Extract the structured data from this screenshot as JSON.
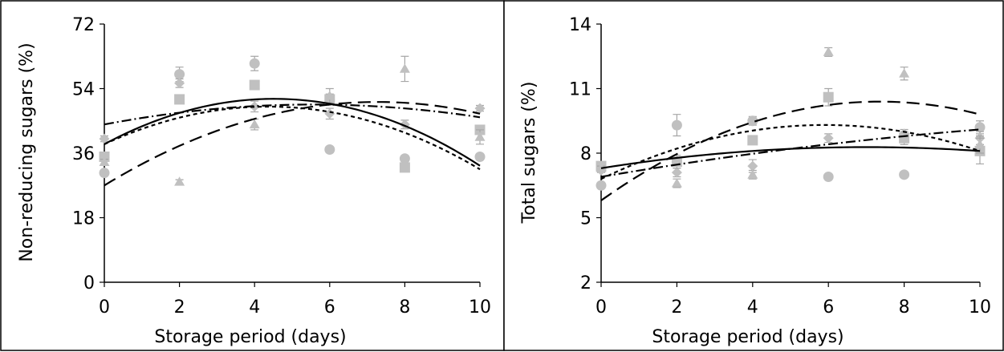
{
  "colors": {
    "marker": "#c0c0c0",
    "fit_line": "#000000",
    "frame": "#000000"
  },
  "chart_data": [
    {
      "type": "scatter",
      "xlabel": "Storage period (days)",
      "ylabel": "Non-reducing sugars (%)",
      "x_ticks": [
        0,
        2,
        4,
        6,
        8,
        10
      ],
      "y_ticks": [
        0,
        18,
        36,
        54,
        72
      ],
      "xlim": [
        0,
        10
      ],
      "ylim": [
        0,
        72
      ],
      "grid": false,
      "series": [
        {
          "marker": "circle",
          "line_style": "short-dash",
          "points": [
            [
              0,
              30.5
            ],
            [
              2,
              58.0
            ],
            [
              4,
              61.0
            ],
            [
              6,
              37.0
            ],
            [
              8,
              34.5
            ],
            [
              10,
              35.0
            ]
          ],
          "errors": [
            0.8,
            2.0,
            2.0,
            0.8,
            0.8,
            0.8
          ],
          "fit": [
            38.5,
            4.8,
            -0.55
          ]
        },
        {
          "marker": "diamond",
          "line_style": "dash-dot",
          "points": [
            [
              0,
              40.0
            ],
            [
              2,
              55.5
            ],
            [
              4,
              49.0
            ],
            [
              6,
              47.0
            ],
            [
              8,
              44.0
            ],
            [
              10,
              48.5
            ]
          ],
          "errors": [
            0.8,
            1.2,
            1.5,
            1.5,
            1.2,
            0.8
          ],
          "fit": [
            44.0,
            2.0,
            -0.18
          ]
        },
        {
          "marker": "square",
          "line_style": "solid",
          "points": [
            [
              0,
              35.0
            ],
            [
              2,
              51.0
            ],
            [
              4,
              55.0
            ],
            [
              6,
              51.0
            ],
            [
              8,
              32.0
            ],
            [
              10,
              42.5
            ]
          ],
          "errors": [
            0.8,
            1.2,
            1.0,
            1.5,
            1.0,
            1.0
          ],
          "fit": [
            38.5,
            5.6,
            -0.62
          ]
        },
        {
          "marker": "triangle",
          "line_style": "long-dash",
          "points": [
            [
              0,
              33.5
            ],
            [
              2,
              28.0
            ],
            [
              4,
              44.0
            ],
            [
              6,
              52.0
            ],
            [
              8,
              59.5
            ],
            [
              10,
              40.5
            ]
          ],
          "errors": [
            0.8,
            0.6,
            1.5,
            2.0,
            3.5,
            2.0
          ],
          "fit": [
            27.0,
            6.4,
            -0.44
          ]
        }
      ]
    },
    {
      "type": "scatter",
      "xlabel": "Storage period (days)",
      "ylabel": "Total sugars (%)",
      "x_ticks": [
        0,
        2,
        4,
        6,
        8,
        10
      ],
      "y_ticks": [
        2,
        5,
        8,
        11,
        14
      ],
      "xlim": [
        0,
        10
      ],
      "ylim": [
        2,
        14
      ],
      "grid": false,
      "series": [
        {
          "marker": "circle",
          "line_style": "short-dash",
          "points": [
            [
              0,
              6.5
            ],
            [
              2,
              9.3
            ],
            [
              4,
              9.5
            ],
            [
              6,
              6.9
            ],
            [
              8,
              7.0
            ],
            [
              10,
              9.2
            ]
          ],
          "errors": [
            0.1,
            0.5,
            0.2,
            0.1,
            0.1,
            0.3
          ],
          "fit": [
            6.8,
            0.85,
            -0.072
          ]
        },
        {
          "marker": "diamond",
          "line_style": "dash-dot",
          "points": [
            [
              0,
              7.2
            ],
            [
              2,
              7.1
            ],
            [
              4,
              7.4
            ],
            [
              6,
              8.7
            ],
            [
              8,
              8.9
            ],
            [
              10,
              8.7
            ]
          ],
          "errors": [
            0.1,
            0.2,
            0.3,
            0.2,
            0.2,
            0.3
          ],
          "fit": [
            6.9,
            0.3,
            -0.008
          ]
        },
        {
          "marker": "square",
          "line_style": "solid",
          "points": [
            [
              0,
              7.4
            ],
            [
              2,
              7.6
            ],
            [
              4,
              8.6
            ],
            [
              6,
              10.6
            ],
            [
              8,
              8.7
            ],
            [
              10,
              8.1
            ]
          ],
          "errors": [
            0.1,
            0.3,
            0.2,
            0.4,
            0.3,
            0.6
          ],
          "fit": [
            7.3,
            0.28,
            -0.02
          ]
        },
        {
          "marker": "triangle",
          "line_style": "long-dash",
          "points": [
            [
              0,
              7.3
            ],
            [
              2,
              6.6
            ],
            [
              4,
              7.0
            ],
            [
              6,
              12.7
            ],
            [
              8,
              11.7
            ],
            [
              10,
              8.4
            ]
          ],
          "errors": [
            0.1,
            0.2,
            0.2,
            0.2,
            0.3,
            0.4
          ],
          "fit": [
            5.8,
            1.25,
            -0.085
          ]
        }
      ]
    }
  ]
}
